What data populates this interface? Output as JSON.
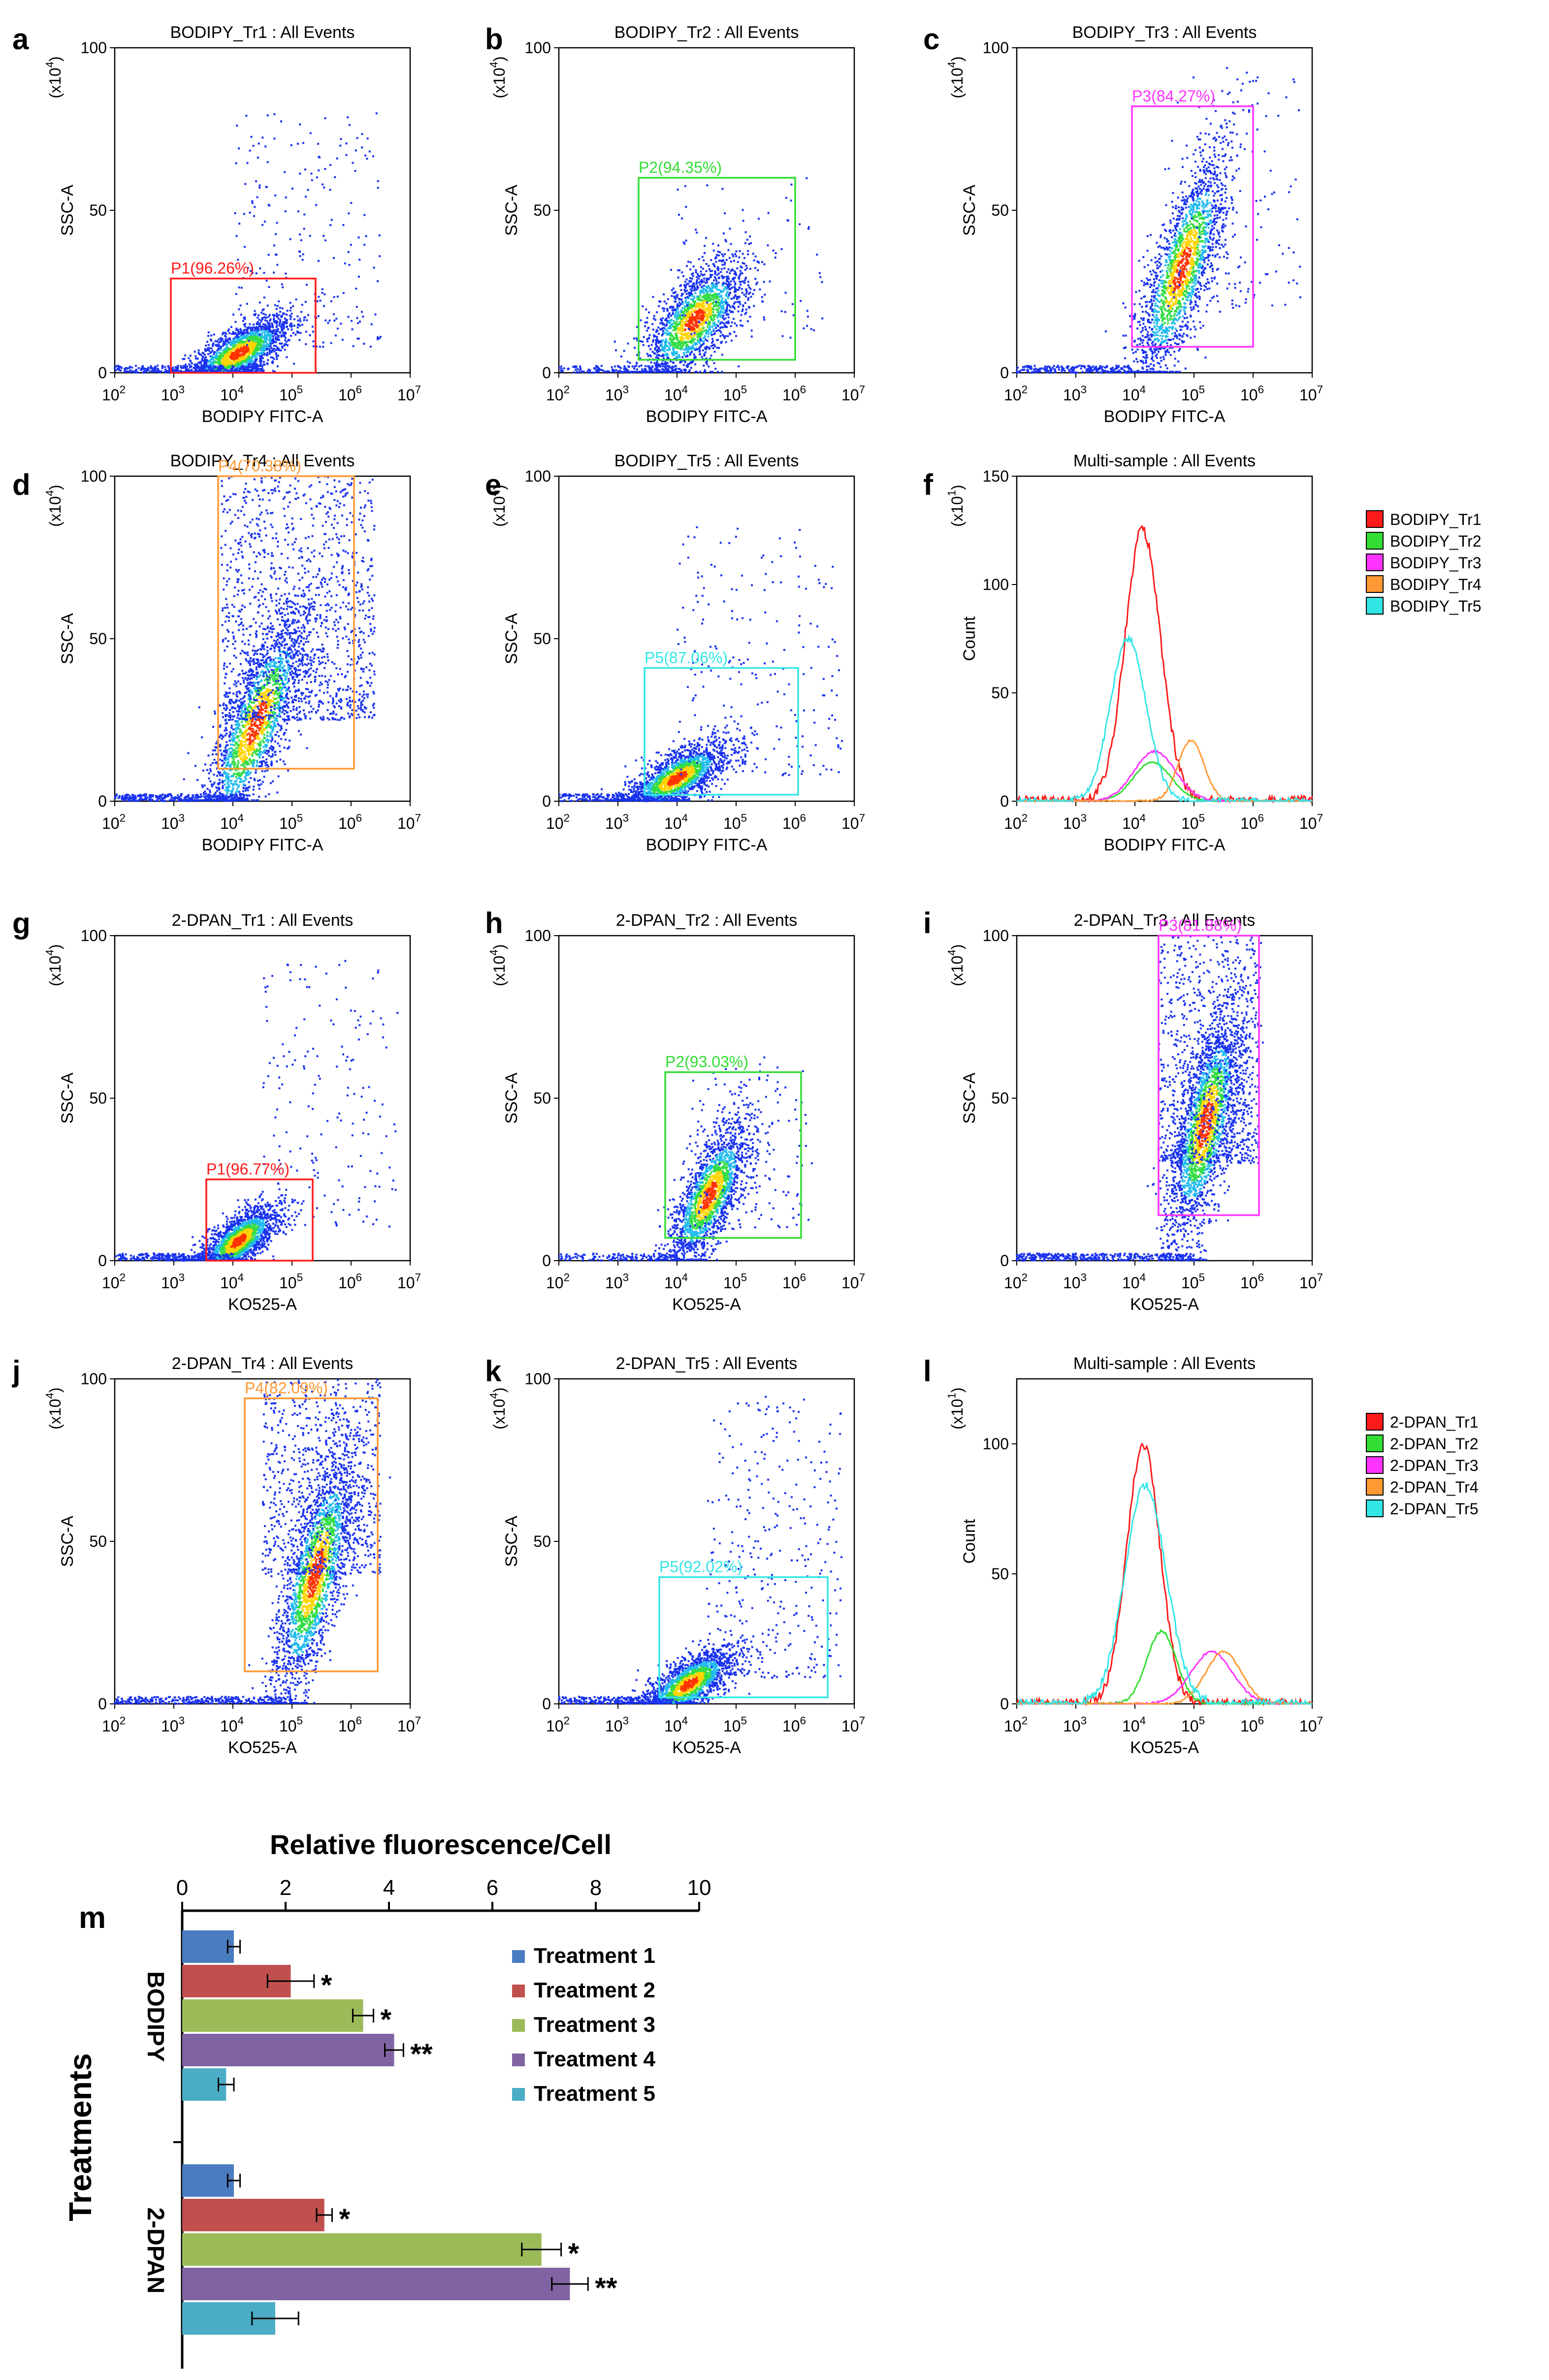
{
  "colors": {
    "red": "#ff1a1a",
    "green": "#33dd33",
    "magenta": "#ff33ff",
    "orange": "#ff9933",
    "cyan": "#33e6e6",
    "bar_t1": "#4a7cc1",
    "bar_t2": "#c0504d",
    "bar_t3": "#9bbb59",
    "bar_t4": "#8064a2",
    "bar_t5": "#4bacc6"
  },
  "chart_data": [
    {
      "panel": "a",
      "type": "scatter",
      "title": "BODIPY_Tr1 : All Events",
      "xlabel": "BODIPY FITC-A",
      "ylabel": "SSC-A",
      "yunit": "(x10^4)",
      "xlim": [
        2,
        7
      ],
      "ylim": [
        0,
        100
      ],
      "yticks": [
        "0",
        "50",
        "100"
      ],
      "xticks": [
        "10^2",
        "10^3",
        "10^4",
        "10^5",
        "10^6",
        "10^7"
      ],
      "gate": {
        "label": "P1(96.26%)",
        "color": "red",
        "x": [
          2.95,
          5.4
        ],
        "y": [
          0,
          29
        ]
      },
      "cloud": {
        "cx": 4.1,
        "cy": 6,
        "sx": 0.45,
        "sy": 4,
        "tilt": 4,
        "n": 2000
      },
      "baseline": {
        "x": [
          2,
          4.5
        ],
        "n": 300
      },
      "spread": {
        "x": [
          4,
          6.5
        ],
        "y": [
          8,
          80
        ],
        "n": 220
      }
    },
    {
      "panel": "b",
      "type": "scatter",
      "title": "BODIPY_Tr2 : All Events",
      "xlabel": "BODIPY FITC-A",
      "ylabel": "SSC-A",
      "yunit": "(x10^4)",
      "xlim": [
        2,
        7
      ],
      "ylim": [
        0,
        100
      ],
      "yticks": [
        "0",
        "50",
        "100"
      ],
      "xticks": [
        "10^2",
        "10^3",
        "10^4",
        "10^5",
        "10^6",
        "10^7"
      ],
      "gate": {
        "label": "P2(94.35%)",
        "color": "green",
        "x": [
          3.35,
          6.0
        ],
        "y": [
          4,
          60
        ]
      },
      "cloud": {
        "cx": 4.3,
        "cy": 16,
        "sx": 0.45,
        "sy": 7,
        "tilt": 6,
        "n": 1900
      },
      "baseline": {
        "x": [
          2,
          4
        ],
        "n": 140
      },
      "spread": {
        "x": [
          4,
          6.5
        ],
        "y": [
          10,
          60
        ],
        "n": 90
      }
    },
    {
      "panel": "c",
      "type": "scatter",
      "title": "BODIPY_Tr3 : All Events",
      "xlabel": "BODIPY FITC-A",
      "ylabel": "SSC-A",
      "yunit": "(x10^4)",
      "xlim": [
        2,
        7
      ],
      "ylim": [
        0,
        100
      ],
      "yticks": [
        "0",
        "50",
        "100"
      ],
      "xticks": [
        "10^2",
        "10^3",
        "10^4",
        "10^5",
        "10^6",
        "10^7"
      ],
      "gate": {
        "label": "P3(84.27%)",
        "color": "magenta",
        "x": [
          3.95,
          6.0
        ],
        "y": [
          8,
          82
        ]
      },
      "cloud": {
        "cx": 4.8,
        "cy": 32,
        "sx": 0.4,
        "sy": 12,
        "tilt": 14,
        "n": 2000
      },
      "baseline": {
        "x": [
          2,
          4
        ],
        "n": 220
      },
      "spread": {
        "x": [
          4.5,
          6.8
        ],
        "y": [
          20,
          95
        ],
        "n": 120
      }
    },
    {
      "panel": "d",
      "type": "scatter",
      "title": "BODIPY_Tr4 : All Events",
      "xlabel": "BODIPY FITC-A",
      "ylabel": "SSC-A",
      "yunit": "(x10^4)",
      "xlim": [
        2,
        7
      ],
      "ylim": [
        0,
        100
      ],
      "yticks": [
        "0",
        "50",
        "100"
      ],
      "xticks": [
        "10^2",
        "10^3",
        "10^4",
        "10^5",
        "10^6",
        "10^7"
      ],
      "gate": {
        "label": "P4(70.38%)",
        "color": "orange",
        "x": [
          3.75,
          6.05
        ],
        "y": [
          10,
          100
        ]
      },
      "cloud": {
        "cx": 4.4,
        "cy": 24,
        "sx": 0.45,
        "sy": 11,
        "tilt": 14,
        "n": 2100
      },
      "baseline": {
        "x": [
          2,
          4.2
        ],
        "n": 300
      },
      "spread": {
        "x": [
          3.8,
          6.4
        ],
        "y": [
          25,
          100
        ],
        "n": 1200
      }
    },
    {
      "panel": "e",
      "type": "scatter",
      "title": "BODIPY_Tr5 : All Events",
      "xlabel": "BODIPY FITC-A",
      "ylabel": "SSC-A",
      "yunit": "(x10^4)",
      "xlim": [
        2,
        7
      ],
      "ylim": [
        0,
        100
      ],
      "yticks": [
        "0",
        "50",
        "100"
      ],
      "xticks": [
        "10^2",
        "10^3",
        "10^4",
        "10^5",
        "10^6",
        "10^7"
      ],
      "gate": {
        "label": "P5(87.06%)",
        "color": "cyan",
        "x": [
          3.45,
          6.05
        ],
        "y": [
          2,
          41
        ]
      },
      "cloud": {
        "cx": 4.0,
        "cy": 7,
        "sx": 0.45,
        "sy": 4,
        "tilt": 4,
        "n": 1900
      },
      "baseline": {
        "x": [
          2,
          4
        ],
        "n": 250
      },
      "spread": {
        "x": [
          4,
          6.8
        ],
        "y": [
          8,
          85
        ],
        "n": 220
      }
    },
    {
      "panel": "f",
      "type": "line",
      "title": "Multi-sample : All Events",
      "xlabel": "BODIPY FITC-A",
      "ylabel": "Count",
      "yunit": "(x10^1)",
      "xlim": [
        2,
        7
      ],
      "ylim": [
        0,
        150
      ],
      "yticks": [
        "0",
        "50",
        "100",
        "150"
      ],
      "xticks": [
        "10^2",
        "10^3",
        "10^4",
        "10^5",
        "10^6",
        "10^7"
      ],
      "legend": [
        "BODIPY_Tr1",
        "BODIPY_Tr2",
        "BODIPY_Tr3",
        "BODIPY_Tr4",
        "BODIPY_Tr5"
      ],
      "series": [
        {
          "name": "BODIPY_Tr1",
          "color": "red",
          "mu": 4.15,
          "sigma": 0.3,
          "peak": 125,
          "sk": 0.5
        },
        {
          "name": "BODIPY_Tr2",
          "color": "green",
          "mu": 4.3,
          "sigma": 0.32,
          "peak": 18,
          "sk": 0.1
        },
        {
          "name": "BODIPY_Tr3",
          "color": "magenta",
          "mu": 4.35,
          "sigma": 0.35,
          "peak": 23,
          "sk": 0.3
        },
        {
          "name": "BODIPY_Tr4",
          "color": "orange",
          "mu": 4.95,
          "sigma": 0.22,
          "peak": 28,
          "sk": 0
        },
        {
          "name": "BODIPY_Tr5",
          "color": "cyan",
          "mu": 3.9,
          "sigma": 0.3,
          "peak": 75,
          "sk": 0.4
        }
      ]
    },
    {
      "panel": "g",
      "type": "scatter",
      "title": "2-DPAN_Tr1 : All Events",
      "xlabel": "KO525-A",
      "ylabel": "SSC-A",
      "yunit": "(x10^4)",
      "xlim": [
        2,
        7
      ],
      "ylim": [
        0,
        100
      ],
      "yticks": [
        "0",
        "50",
        "100"
      ],
      "xticks": [
        "10^2",
        "10^3",
        "10^4",
        "10^5",
        "10^6",
        "10^7"
      ],
      "gate": {
        "label": "P1(96.77%)",
        "color": "red",
        "x": [
          3.55,
          5.35
        ],
        "y": [
          0,
          25
        ]
      },
      "cloud": {
        "cx": 4.1,
        "cy": 6,
        "sx": 0.35,
        "sy": 4,
        "tilt": 4,
        "n": 1900
      },
      "baseline": {
        "x": [
          2,
          4
        ],
        "n": 250
      },
      "spread": {
        "x": [
          4.5,
          6.8
        ],
        "y": [
          10,
          95
        ],
        "n": 180
      }
    },
    {
      "panel": "h",
      "type": "scatter",
      "title": "2-DPAN_Tr2 : All Events",
      "xlabel": "KO525-A",
      "ylabel": "SSC-A",
      "yunit": "(x10^4)",
      "xlim": [
        2,
        7
      ],
      "ylim": [
        0,
        100
      ],
      "yticks": [
        "0",
        "50",
        "100"
      ],
      "xticks": [
        "10^2",
        "10^3",
        "10^4",
        "10^5",
        "10^6",
        "10^7"
      ],
      "gate": {
        "label": "P2(93.03%)",
        "color": "green",
        "x": [
          3.8,
          6.1
        ],
        "y": [
          7,
          58
        ]
      },
      "cloud": {
        "cx": 4.55,
        "cy": 20,
        "sx": 0.35,
        "sy": 8,
        "tilt": 8,
        "n": 1900
      },
      "baseline": {
        "x": [
          2,
          4
        ],
        "n": 160
      },
      "spread": {
        "x": [
          4.2,
          6.3
        ],
        "y": [
          10,
          60
        ],
        "n": 140
      }
    },
    {
      "panel": "i",
      "type": "scatter",
      "title": "2-DPAN_Tr3 : All Events",
      "xlabel": "KO525-A",
      "ylabel": "SSC-A",
      "yunit": "(x10^4)",
      "xlim": [
        2,
        7
      ],
      "ylim": [
        0,
        100
      ],
      "yticks": [
        "0",
        "50",
        "100"
      ],
      "xticks": [
        "10^2",
        "10^3",
        "10^4",
        "10^5",
        "10^6",
        "10^7"
      ],
      "gate": {
        "label": "P3(81.88%)",
        "color": "magenta",
        "x": [
          4.4,
          6.1
        ],
        "y": [
          14,
          100
        ]
      },
      "cloud": {
        "cx": 5.2,
        "cy": 42,
        "sx": 0.32,
        "sy": 14,
        "tilt": 12,
        "n": 2300
      },
      "baseline": {
        "x": [
          2,
          5
        ],
        "n": 380
      },
      "spread": {
        "x": [
          4.4,
          6.1
        ],
        "y": [
          30,
          100
        ],
        "n": 800
      }
    },
    {
      "panel": "j",
      "type": "scatter",
      "title": "2-DPAN_Tr4 : All Events",
      "xlabel": "KO525-A",
      "ylabel": "SSC-A",
      "yunit": "(x10^4)",
      "xlim": [
        2,
        7
      ],
      "ylim": [
        0,
        100
      ],
      "yticks": [
        "0",
        "50",
        "100"
      ],
      "xticks": [
        "10^2",
        "10^3",
        "10^4",
        "10^5",
        "10^6",
        "10^7"
      ],
      "gate": {
        "label": "P4(82.09%)",
        "color": "orange",
        "x": [
          4.2,
          6.45
        ],
        "y": [
          10,
          94
        ]
      },
      "cloud": {
        "cx": 5.4,
        "cy": 40,
        "sx": 0.35,
        "sy": 14,
        "tilt": 14,
        "n": 2200
      },
      "baseline": {
        "x": [
          2,
          5
        ],
        "n": 300
      },
      "spread": {
        "x": [
          4.5,
          6.5
        ],
        "y": [
          40,
          100
        ],
        "n": 700
      }
    },
    {
      "panel": "k",
      "type": "scatter",
      "title": "2-DPAN_Tr5 : All Events",
      "xlabel": "KO525-A",
      "ylabel": "SSC-A",
      "yunit": "(x10^4)",
      "xlim": [
        2,
        7
      ],
      "ylim": [
        0,
        100
      ],
      "yticks": [
        "0",
        "50",
        "100"
      ],
      "xticks": [
        "10^2",
        "10^3",
        "10^4",
        "10^5",
        "10^6",
        "10^7"
      ],
      "gate": {
        "label": "P5(92.02%)",
        "color": "cyan",
        "x": [
          3.7,
          6.55
        ],
        "y": [
          2,
          39
        ]
      },
      "cloud": {
        "cx": 4.2,
        "cy": 6,
        "sx": 0.4,
        "sy": 4,
        "tilt": 4,
        "n": 1900
      },
      "baseline": {
        "x": [
          2,
          4
        ],
        "n": 260
      },
      "spread": {
        "x": [
          4.5,
          6.8
        ],
        "y": [
          8,
          95
        ],
        "n": 320
      }
    },
    {
      "panel": "l",
      "type": "line",
      "title": "Multi-sample : All Events",
      "xlabel": "KO525-A",
      "ylabel": "Count",
      "yunit": "(x10^1)",
      "xlim": [
        2,
        7
      ],
      "ylim": [
        0,
        125
      ],
      "yticks": [
        "0",
        "50",
        "100"
      ],
      "xticks": [
        "10^2",
        "10^3",
        "10^4",
        "10^5",
        "10^6",
        "10^7"
      ],
      "legend": [
        "2-DPAN_Tr1",
        "2-DPAN_Tr2",
        "2-DPAN_Tr3",
        "2-DPAN_Tr4",
        "2-DPAN_Tr5"
      ],
      "series": [
        {
          "name": "2-DPAN_Tr1",
          "color": "red",
          "mu": 4.15,
          "sigma": 0.28,
          "peak": 100,
          "sk": 0.2
        },
        {
          "name": "2-DPAN_Tr2",
          "color": "green",
          "mu": 4.45,
          "sigma": 0.25,
          "peak": 28,
          "sk": 0
        },
        {
          "name": "2-DPAN_Tr3",
          "color": "magenta",
          "mu": 5.3,
          "sigma": 0.35,
          "peak": 20,
          "sk": 0
        },
        {
          "name": "2-DPAN_Tr4",
          "color": "orange",
          "mu": 5.5,
          "sigma": 0.3,
          "peak": 20,
          "sk": 0
        },
        {
          "name": "2-DPAN_Tr5",
          "color": "cyan",
          "mu": 4.2,
          "sigma": 0.35,
          "peak": 84,
          "sk": 0.5
        }
      ]
    },
    {
      "panel": "m",
      "type": "bar",
      "orientation": "horizontal",
      "title": "Relative fluorescence/Cell",
      "ylabel": "Treatments",
      "xlim": [
        0,
        10
      ],
      "xticks": [
        "0",
        "2",
        "4",
        "6",
        "8",
        "10"
      ],
      "groups": [
        "BODIPY",
        "2-DPAN"
      ],
      "series": [
        {
          "name": "Treatment 1",
          "color": "bar_t1",
          "values": [
            1.0,
            1.0
          ],
          "errors": [
            0.12,
            0.12
          ],
          "sig": [
            "",
            ""
          ]
        },
        {
          "name": "Treatment 2",
          "color": "bar_t2",
          "values": [
            2.1,
            2.75
          ],
          "errors": [
            0.45,
            0.15
          ],
          "sig": [
            "*",
            "*"
          ]
        },
        {
          "name": "Treatment 3",
          "color": "bar_t3",
          "values": [
            3.5,
            6.95
          ],
          "errors": [
            0.2,
            0.38
          ],
          "sig": [
            "*",
            "*"
          ]
        },
        {
          "name": "Treatment 4",
          "color": "bar_t4",
          "values": [
            4.1,
            7.5
          ],
          "errors": [
            0.18,
            0.35
          ],
          "sig": [
            "**",
            "**"
          ]
        },
        {
          "name": "Treatment 5",
          "color": "bar_t5",
          "values": [
            0.85,
            1.8
          ],
          "errors": [
            0.15,
            0.45
          ],
          "sig": [
            "",
            ""
          ]
        }
      ]
    }
  ]
}
